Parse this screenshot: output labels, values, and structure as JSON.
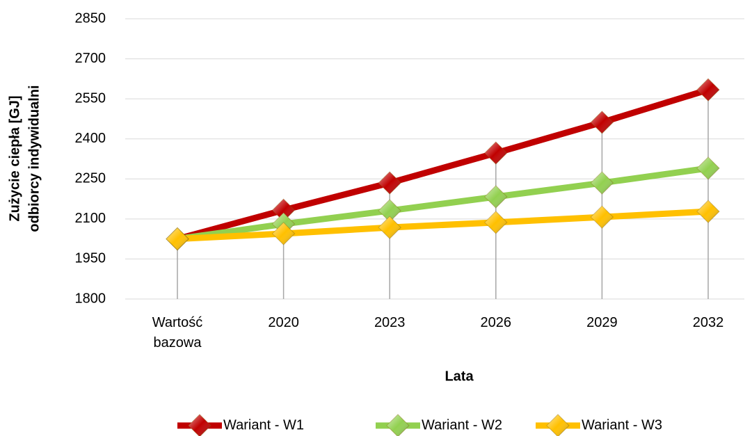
{
  "chart_data": {
    "type": "line",
    "categories": [
      "Wartość bazowa",
      "2020",
      "2023",
      "2026",
      "2029",
      "2032"
    ],
    "series": [
      {
        "name": "Wariant - W1",
        "color": "#c00000",
        "values": [
          2025,
          2133,
          2235,
          2347,
          2462,
          2584
        ]
      },
      {
        "name": "Wariant - W2",
        "color": "#92d050",
        "values": [
          2025,
          2081,
          2131,
          2183,
          2235,
          2290
        ]
      },
      {
        "name": "Wariant - W3",
        "color": "#ffc000",
        "values": [
          2025,
          2045,
          2068,
          2087,
          2107,
          2128
        ]
      }
    ],
    "ylim": [
      1800,
      2850
    ],
    "yticks": [
      1800,
      1950,
      2100,
      2250,
      2400,
      2550,
      2700,
      2850
    ],
    "grid": true,
    "legend": "bottom",
    "x_label": "Lata",
    "y_label": [
      "Zużycie ciepła [GJ]",
      "odbiorcy indywidualni"
    ]
  }
}
